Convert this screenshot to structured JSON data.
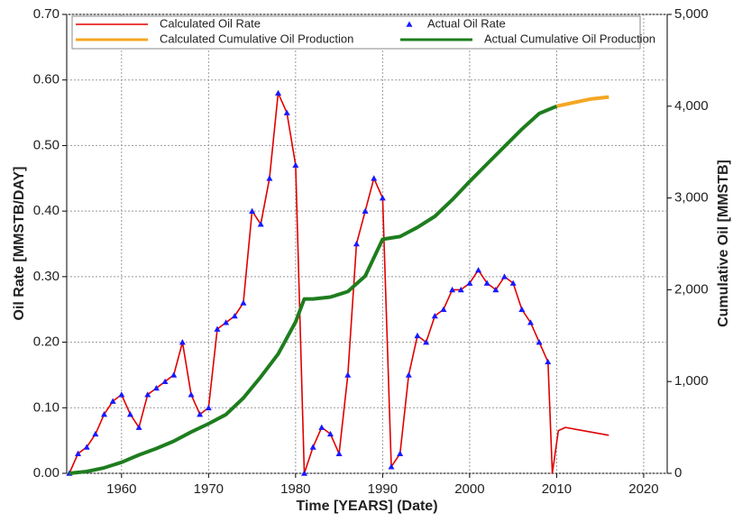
{
  "chart_data": {
    "type": "line",
    "x_label": "Time [YEARS] (Date)",
    "y_label": "Oil Rate [MMSTB/DAY]",
    "y2_label": "Cumulative Oil [MMSTB]",
    "xlim": [
      1953.7,
      2022.7
    ],
    "xticks": [
      1960,
      1970,
      1980,
      1990,
      2000,
      2010,
      2020
    ],
    "ylim": [
      0,
      0.7
    ],
    "yticks": [
      {
        "value": 0,
        "label": "0.00"
      },
      {
        "value": 0.1,
        "label": "0.10"
      },
      {
        "value": 0.2,
        "label": "0.20"
      },
      {
        "value": 0.3,
        "label": "0.30"
      },
      {
        "value": 0.4,
        "label": "0.40"
      },
      {
        "value": 0.5,
        "label": "0.50"
      },
      {
        "value": 0.6,
        "label": "0.60"
      },
      {
        "value": 0.7,
        "label": "0.70"
      }
    ],
    "y2lim": [
      0,
      5000
    ],
    "y2ticks": [
      0,
      {
        "value": 1000,
        "label": "1,000"
      },
      {
        "value": 2000,
        "label": "2,000"
      },
      {
        "value": 3000,
        "label": "3,000"
      },
      {
        "value": 4000,
        "label": "4,000"
      },
      {
        "value": 5000,
        "label": "5,000"
      }
    ],
    "grid": true,
    "series": [
      {
        "name": "Calculated Oil Rate",
        "color": "#e00000",
        "style": "line",
        "x": [
          1954,
          1955,
          1956,
          1957,
          1958,
          1959,
          1960,
          1961,
          1962,
          1963,
          1964,
          1965,
          1966,
          1967,
          1968,
          1969,
          1970,
          1971,
          1972,
          1973,
          1974,
          1975,
          1976,
          1977,
          1978,
          1979,
          1980,
          1981,
          1982,
          1983,
          1984,
          1985,
          1986,
          1987,
          1988,
          1989,
          1990,
          1991,
          1992,
          1993,
          1994,
          1995,
          1996,
          1997,
          1998,
          1999,
          2000,
          2001,
          2002,
          2003,
          2004,
          2005,
          2006,
          2007,
          2008,
          2009,
          2009.5,
          2010.2,
          2011,
          2016
        ],
        "values": [
          0,
          0.03,
          0.04,
          0.06,
          0.09,
          0.11,
          0.12,
          0.09,
          0.07,
          0.12,
          0.13,
          0.14,
          0.15,
          0.2,
          0.12,
          0.09,
          0.1,
          0.22,
          0.23,
          0.24,
          0.26,
          0.4,
          0.38,
          0.45,
          0.58,
          0.55,
          0.47,
          0,
          0.04,
          0.07,
          0.06,
          0.03,
          0.15,
          0.35,
          0.4,
          0.45,
          0.42,
          0.01,
          0.03,
          0.15,
          0.21,
          0.2,
          0.24,
          0.25,
          0.28,
          0.28,
          0.29,
          0.31,
          0.29,
          0.28,
          0.3,
          0.29,
          0.25,
          0.23,
          0.2,
          0.17,
          0,
          0.065,
          0.07,
          0.058
        ]
      },
      {
        "name": "Actual Oil Rate",
        "color": "#1a1aff",
        "style": "markers",
        "x": [
          1954,
          1955,
          1956,
          1957,
          1958,
          1959,
          1960,
          1961,
          1962,
          1963,
          1964,
          1965,
          1966,
          1967,
          1968,
          1969,
          1970,
          1971,
          1972,
          1973,
          1974,
          1975,
          1976,
          1977,
          1978,
          1979,
          1980,
          1981,
          1982,
          1983,
          1984,
          1985,
          1986,
          1987,
          1988,
          1989,
          1990,
          1991,
          1992,
          1993,
          1994,
          1995,
          1996,
          1997,
          1998,
          1999,
          2000,
          2001,
          2002,
          2003,
          2004,
          2005,
          2006,
          2007,
          2008,
          2009
        ],
        "values": [
          0,
          0.03,
          0.04,
          0.06,
          0.09,
          0.11,
          0.12,
          0.09,
          0.07,
          0.12,
          0.13,
          0.14,
          0.15,
          0.2,
          0.12,
          0.09,
          0.1,
          0.22,
          0.23,
          0.24,
          0.26,
          0.4,
          0.38,
          0.45,
          0.58,
          0.55,
          0.47,
          0,
          0.04,
          0.07,
          0.06,
          0.03,
          0.15,
          0.35,
          0.4,
          0.45,
          0.42,
          0.01,
          0.03,
          0.15,
          0.21,
          0.2,
          0.24,
          0.25,
          0.28,
          0.28,
          0.29,
          0.31,
          0.29,
          0.28,
          0.3,
          0.29,
          0.25,
          0.23,
          0.2,
          0.17
        ]
      },
      {
        "name": "Calculated Cumulative Oil Production",
        "color": "#f5a623",
        "style": "line",
        "axis": "y2",
        "x": [
          2010,
          2012,
          2014,
          2016
        ],
        "values": [
          4000,
          4040,
          4080,
          4100
        ]
      },
      {
        "name": "Actual Cumulative Oil Production",
        "color": "#1e7d1e",
        "style": "line",
        "axis": "y2",
        "x": [
          1954,
          1956,
          1958,
          1960,
          1962,
          1964,
          1966,
          1968,
          1970,
          1972,
          1974,
          1976,
          1978,
          1980,
          1981,
          1982,
          1984,
          1986,
          1988,
          1990,
          1992,
          1994,
          1996,
          1998,
          2000,
          2002,
          2004,
          2006,
          2008,
          2010
        ],
        "values": [
          0,
          20,
          60,
          120,
          200,
          270,
          350,
          450,
          540,
          640,
          820,
          1050,
          1300,
          1650,
          1900,
          1900,
          1920,
          1980,
          2150,
          2550,
          2580,
          2680,
          2800,
          2980,
          3180,
          3370,
          3560,
          3750,
          3920,
          4000
        ]
      }
    ]
  }
}
